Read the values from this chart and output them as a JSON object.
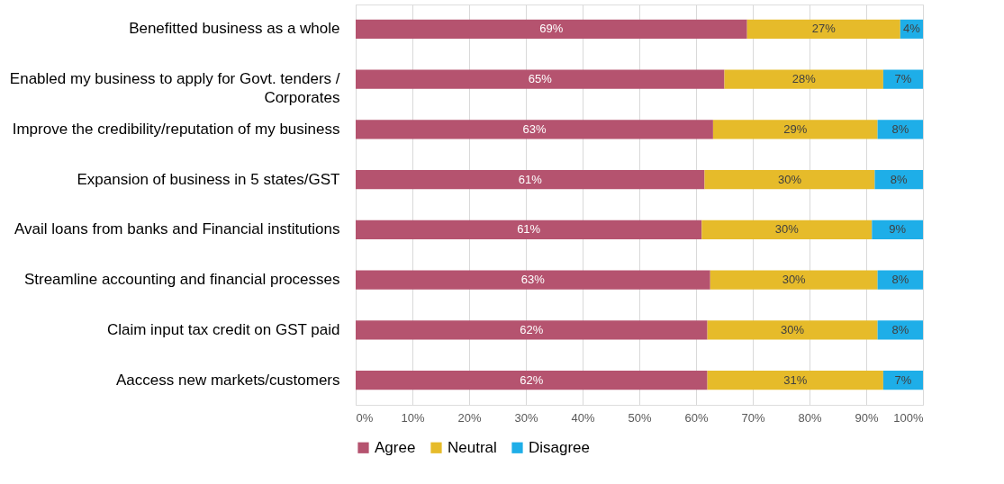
{
  "chart_data": {
    "type": "bar",
    "orientation": "horizontal",
    "stacked": true,
    "categories": [
      "Benefitted business as a whole",
      "Enabled my business to apply for Govt. tenders  /\nCorporates",
      "Improve the credibility/reputation of my business",
      "Expansion of business in 5 states/GST",
      "Avail loans from banks and Financial institutions",
      "Streamline accounting and financial processes",
      "Claim input tax credit on GST paid",
      "Aaccess new markets/customers"
    ],
    "series": [
      {
        "name": "Agree",
        "color": "#b5536f",
        "values": [
          69,
          65,
          63,
          61.5,
          61,
          62.5,
          62,
          62
        ],
        "value_labels": [
          "69%",
          "65%",
          "63%",
          "61%",
          "61%",
          "63%",
          "62%",
          "62%"
        ]
      },
      {
        "name": "Neutral",
        "color": "#e6bb2a",
        "values": [
          27,
          28,
          29,
          30,
          30,
          29.5,
          30,
          31
        ],
        "value_labels": [
          "27%",
          "28%",
          "29%",
          "30%",
          "30%",
          "30%",
          "30%",
          "31%"
        ]
      },
      {
        "name": "Disagree",
        "color": "#1eaee8",
        "values": [
          4,
          7,
          8,
          8.5,
          9,
          8,
          8,
          7
        ],
        "value_labels": [
          "4%",
          "7%",
          "8%",
          "8%",
          "9%",
          "8%",
          "8%",
          "7%"
        ]
      }
    ],
    "xlim": [
      0,
      100
    ],
    "xticks": [
      {
        "value": 0,
        "label": "0%"
      },
      {
        "value": 10,
        "label": "10%"
      },
      {
        "value": 20,
        "label": "20%"
      },
      {
        "value": 30,
        "label": "30%"
      },
      {
        "value": 40,
        "label": "40%"
      },
      {
        "value": 50,
        "label": "50%"
      },
      {
        "value": 60,
        "label": "60%"
      },
      {
        "value": 70,
        "label": "70%"
      },
      {
        "value": 80,
        "label": "80%"
      },
      {
        "value": 90,
        "label": "90%"
      },
      {
        "value": 100,
        "label": "100%"
      }
    ],
    "grid": "x",
    "legend": "bottom"
  }
}
